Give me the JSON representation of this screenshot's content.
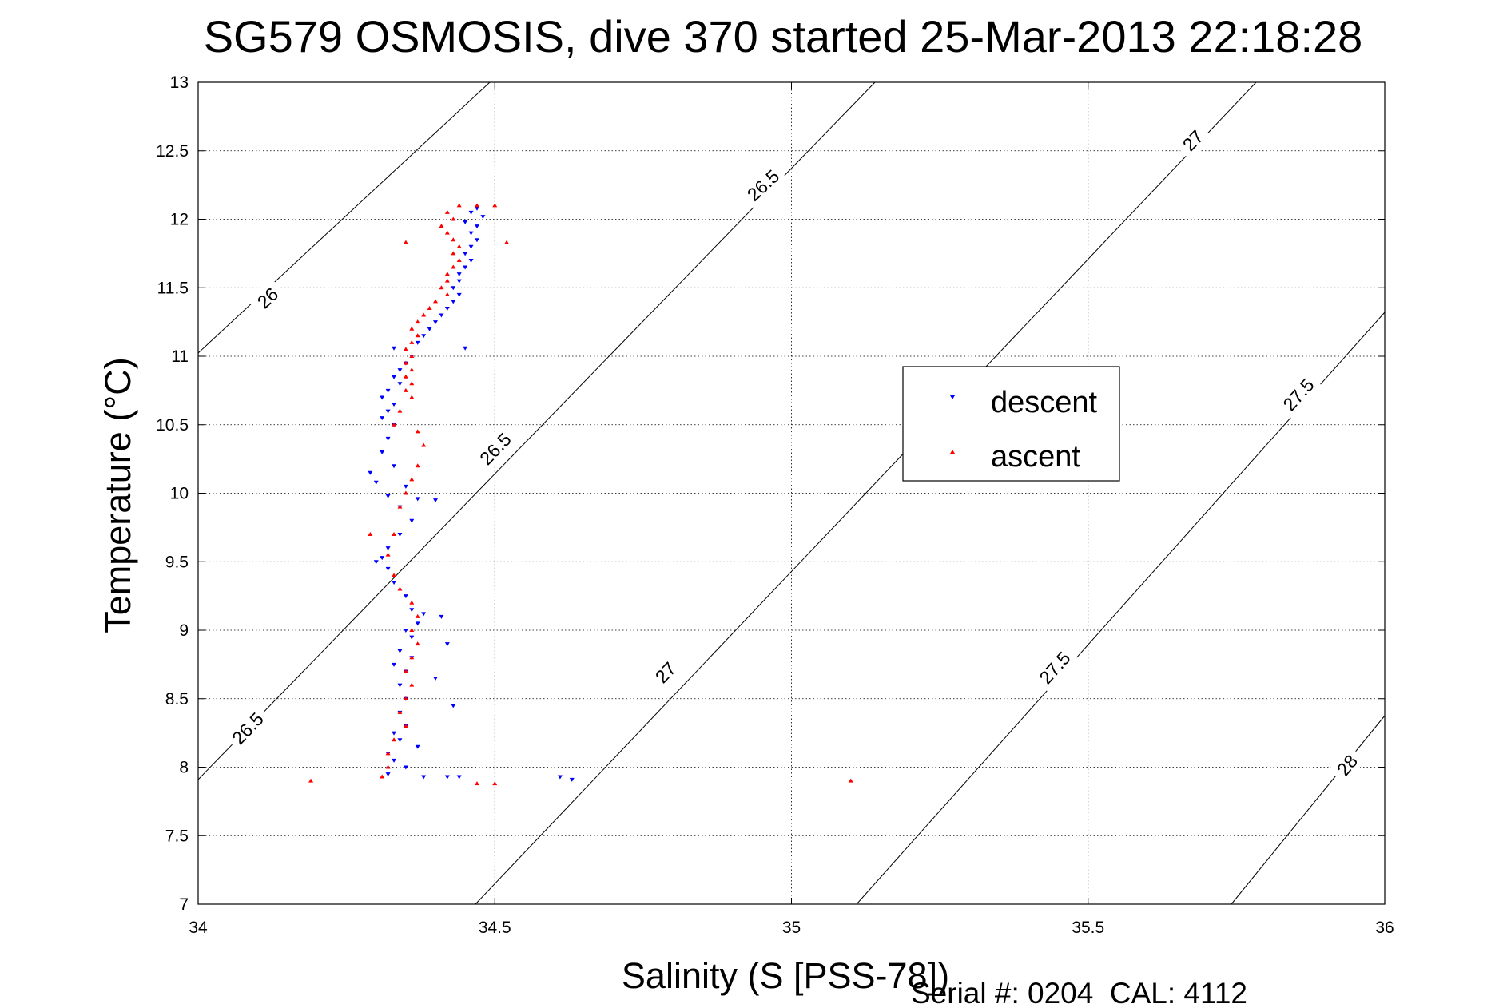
{
  "chart_data": {
    "type": "scatter",
    "title": "SG579 OSMOSIS, dive 370 started 25-Mar-2013 22:18:28",
    "xlabel": "Salinity (S [PSS-78])",
    "ylabel": "Temperature (°C)",
    "xlim": [
      34,
      36
    ],
    "ylim": [
      7,
      13
    ],
    "xticks": [
      34,
      34.5,
      35,
      35.5,
      36
    ],
    "xtick_labels": [
      "34",
      "34.5",
      "35",
      "35.5",
      "36"
    ],
    "yticks": [
      7,
      7.5,
      8,
      8.5,
      9,
      9.5,
      10,
      10.5,
      11,
      11.5,
      12,
      12.5,
      13
    ],
    "ytick_labels": [
      "7",
      "7.5",
      "8",
      "8.5",
      "9",
      "9.5",
      "10",
      "10.5",
      "11",
      "11.5",
      "12",
      "12.5",
      "13"
    ],
    "grid": true,
    "legend_position": "center-right",
    "annotation": "Serial #: 0204  CAL: 4112",
    "density_contours": [
      {
        "label": "26",
        "values": [
          "26"
        ]
      },
      {
        "label": "26.5",
        "values": [
          "26.5",
          "26.5",
          "26.5"
        ]
      },
      {
        "label": "27",
        "values": [
          "27",
          "27"
        ]
      },
      {
        "label": "27.5",
        "values": [
          "27.5",
          "27.5"
        ]
      },
      {
        "label": "28",
        "values": [
          "28"
        ]
      }
    ],
    "series": [
      {
        "name": "descent",
        "color": "#0000ff",
        "marker": "triangle-down",
        "points": [
          [
            34.47,
            12.08
          ],
          [
            34.46,
            12.05
          ],
          [
            34.48,
            12.02
          ],
          [
            34.45,
            11.98
          ],
          [
            34.47,
            11.95
          ],
          [
            34.46,
            11.9
          ],
          [
            34.47,
            11.85
          ],
          [
            34.46,
            11.8
          ],
          [
            34.45,
            11.75
          ],
          [
            34.46,
            11.7
          ],
          [
            34.45,
            11.65
          ],
          [
            34.44,
            11.6
          ],
          [
            34.44,
            11.55
          ],
          [
            34.43,
            11.5
          ],
          [
            34.44,
            11.45
          ],
          [
            34.43,
            11.4
          ],
          [
            34.42,
            11.35
          ],
          [
            34.41,
            11.3
          ],
          [
            34.4,
            11.25
          ],
          [
            34.39,
            11.2
          ],
          [
            34.38,
            11.15
          ],
          [
            34.37,
            11.1
          ],
          [
            34.33,
            11.06
          ],
          [
            34.45,
            11.06
          ],
          [
            34.36,
            11.0
          ],
          [
            34.35,
            10.95
          ],
          [
            34.34,
            10.9
          ],
          [
            34.33,
            10.85
          ],
          [
            34.34,
            10.8
          ],
          [
            34.32,
            10.75
          ],
          [
            34.31,
            10.7
          ],
          [
            34.33,
            10.65
          ],
          [
            34.32,
            10.6
          ],
          [
            34.31,
            10.55
          ],
          [
            34.33,
            10.5
          ],
          [
            34.32,
            10.4
          ],
          [
            34.31,
            10.3
          ],
          [
            34.33,
            10.2
          ],
          [
            34.29,
            10.15
          ],
          [
            34.3,
            10.08
          ],
          [
            34.35,
            10.05
          ],
          [
            34.32,
            9.98
          ],
          [
            34.37,
            9.96
          ],
          [
            34.4,
            9.95
          ],
          [
            34.34,
            9.9
          ],
          [
            34.36,
            9.8
          ],
          [
            34.34,
            9.7
          ],
          [
            34.32,
            9.6
          ],
          [
            34.31,
            9.53
          ],
          [
            34.3,
            9.5
          ],
          [
            34.32,
            9.45
          ],
          [
            34.33,
            9.35
          ],
          [
            34.35,
            9.25
          ],
          [
            34.36,
            9.15
          ],
          [
            34.38,
            9.12
          ],
          [
            34.41,
            9.1
          ],
          [
            34.37,
            9.05
          ],
          [
            34.35,
            9.0
          ],
          [
            34.36,
            8.95
          ],
          [
            34.42,
            8.9
          ],
          [
            34.34,
            8.85
          ],
          [
            34.36,
            8.8
          ],
          [
            34.33,
            8.75
          ],
          [
            34.35,
            8.7
          ],
          [
            34.4,
            8.65
          ],
          [
            34.34,
            8.6
          ],
          [
            34.35,
            8.5
          ],
          [
            34.43,
            8.45
          ],
          [
            34.34,
            8.4
          ],
          [
            34.35,
            8.3
          ],
          [
            34.33,
            8.25
          ],
          [
            34.34,
            8.2
          ],
          [
            34.37,
            8.15
          ],
          [
            34.32,
            8.1
          ],
          [
            34.33,
            8.05
          ],
          [
            34.35,
            8.0
          ],
          [
            34.32,
            7.95
          ],
          [
            34.38,
            7.93
          ],
          [
            34.42,
            7.93
          ],
          [
            34.61,
            7.93
          ],
          [
            34.63,
            7.91
          ],
          [
            34.44,
            7.93
          ]
        ]
      },
      {
        "name": "ascent",
        "color": "#ff0000",
        "marker": "triangle-up",
        "points": [
          [
            34.44,
            12.1
          ],
          [
            34.47,
            12.1
          ],
          [
            34.5,
            12.1
          ],
          [
            34.42,
            12.05
          ],
          [
            34.43,
            12.0
          ],
          [
            34.41,
            11.95
          ],
          [
            34.42,
            11.9
          ],
          [
            34.43,
            11.85
          ],
          [
            34.35,
            11.83
          ],
          [
            34.52,
            11.83
          ],
          [
            34.44,
            11.8
          ],
          [
            34.43,
            11.75
          ],
          [
            34.44,
            11.7
          ],
          [
            34.43,
            11.65
          ],
          [
            34.42,
            11.6
          ],
          [
            34.42,
            11.55
          ],
          [
            34.41,
            11.5
          ],
          [
            34.42,
            11.45
          ],
          [
            34.4,
            11.4
          ],
          [
            34.39,
            11.35
          ],
          [
            34.38,
            11.3
          ],
          [
            34.37,
            11.25
          ],
          [
            34.36,
            11.2
          ],
          [
            34.37,
            11.15
          ],
          [
            34.36,
            11.1
          ],
          [
            34.35,
            11.05
          ],
          [
            34.36,
            11.0
          ],
          [
            34.35,
            10.95
          ],
          [
            34.36,
            10.9
          ],
          [
            34.35,
            10.85
          ],
          [
            34.36,
            10.8
          ],
          [
            34.35,
            10.75
          ],
          [
            34.36,
            10.7
          ],
          [
            34.34,
            10.6
          ],
          [
            34.33,
            10.5
          ],
          [
            34.37,
            10.45
          ],
          [
            34.38,
            10.35
          ],
          [
            34.37,
            10.2
          ],
          [
            34.36,
            10.1
          ],
          [
            34.35,
            10.0
          ],
          [
            34.34,
            9.9
          ],
          [
            34.33,
            9.7
          ],
          [
            34.29,
            9.7
          ],
          [
            34.32,
            9.55
          ],
          [
            34.33,
            9.4
          ],
          [
            34.34,
            9.3
          ],
          [
            34.36,
            9.2
          ],
          [
            34.37,
            9.1
          ],
          [
            34.36,
            9.0
          ],
          [
            34.37,
            8.9
          ],
          [
            34.36,
            8.8
          ],
          [
            34.35,
            8.7
          ],
          [
            34.36,
            8.6
          ],
          [
            34.35,
            8.5
          ],
          [
            34.34,
            8.4
          ],
          [
            34.35,
            8.3
          ],
          [
            34.33,
            8.2
          ],
          [
            34.32,
            8.1
          ],
          [
            34.32,
            8.0
          ],
          [
            34.19,
            7.9
          ],
          [
            34.31,
            7.93
          ],
          [
            34.47,
            7.88
          ],
          [
            34.5,
            7.88
          ],
          [
            35.1,
            7.9
          ]
        ]
      }
    ]
  }
}
